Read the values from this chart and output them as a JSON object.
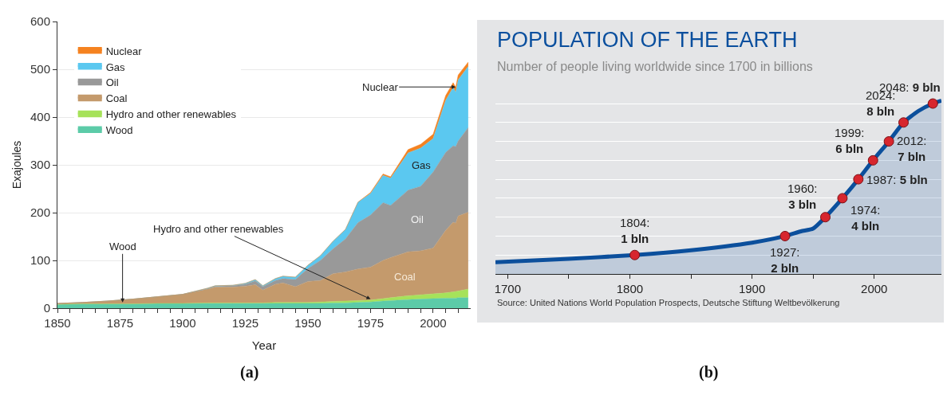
{
  "chart_data": [
    {
      "type": "area",
      "stacked": true,
      "xlabel": "Year",
      "ylabel": "Exajoules",
      "grid": "y",
      "legend": "top left",
      "x": [
        1850,
        1860,
        1870,
        1880,
        1890,
        1900,
        1910,
        1913,
        1920,
        1925,
        1929,
        1932,
        1937,
        1940,
        1945,
        1950,
        1955,
        1960,
        1965,
        1970,
        1975,
        1980,
        1983,
        1990,
        1995,
        2000,
        2005,
        2008,
        2009,
        2010,
        2014
      ],
      "series": [
        {
          "name": "Wood",
          "color": "#5ccba8",
          "values": [
            8,
            9,
            9,
            9,
            10,
            10,
            10,
            10,
            10,
            10,
            10,
            10,
            10,
            10,
            10,
            10,
            10,
            11,
            11,
            12,
            13,
            15,
            16,
            18,
            19,
            20,
            21,
            21,
            21,
            22,
            22
          ]
        },
        {
          "name": "Hydro and other renewables",
          "color": "#a6e25a",
          "values": [
            0,
            0,
            0,
            0,
            0,
            0,
            1,
            1,
            1,
            1,
            1,
            1,
            2,
            2,
            2,
            2,
            3,
            3,
            4,
            4,
            4,
            5,
            6,
            8,
            9,
            10,
            11,
            13,
            14,
            14,
            18
          ]
        },
        {
          "name": "Coal",
          "color": "#c49a6c",
          "values": [
            2,
            3,
            6,
            10,
            14,
            19,
            29,
            33,
            33,
            35,
            38,
            27,
            38,
            41,
            33,
            44,
            45,
            58,
            61,
            66,
            69,
            80,
            84,
            92,
            92,
            96,
            131,
            146,
            143,
            157,
            161
          ]
        },
        {
          "name": "Oil",
          "color": "#999999",
          "values": [
            0,
            0,
            0,
            0,
            0,
            0,
            1,
            2,
            3,
            4,
            8,
            7,
            8,
            9,
            15,
            27,
            42,
            52,
            69,
            97,
            109,
            121,
            109,
            129,
            135,
            159,
            163,
            160,
            160,
            157,
            177
          ]
        },
        {
          "name": "Gas",
          "color": "#5bc8f0",
          "values": [
            0,
            0,
            0,
            0,
            0,
            0,
            1,
            1,
            1,
            2,
            3,
            2,
            4,
            5,
            5,
            7,
            10,
            16,
            20,
            43,
            45,
            57,
            57,
            78,
            80,
            70,
            109,
            122,
            114,
            128,
            128
          ]
        },
        {
          "name": "Nuclear",
          "color": "#f58220",
          "values": [
            0,
            0,
            0,
            0,
            0,
            0,
            0,
            0,
            0,
            0,
            0,
            0,
            0,
            0,
            0,
            0,
            0,
            0,
            0,
            0,
            2,
            3,
            3,
            7,
            8,
            9,
            10,
            10,
            10,
            10,
            9
          ]
        }
      ],
      "xlim": [
        1850,
        2015
      ],
      "ylim": [
        0,
        600
      ],
      "xticks": [
        1850,
        {
          "value": 1855,
          "label": null
        },
        {
          "value": 1860,
          "label": null
        },
        {
          "value": 1865,
          "label": null
        },
        {
          "value": 1870,
          "label": null
        },
        1875,
        {
          "value": 1880,
          "label": null
        },
        {
          "value": 1885,
          "label": null
        },
        {
          "value": 1890,
          "label": null
        },
        {
          "value": 1895,
          "label": null
        },
        1900,
        {
          "value": 1905,
          "label": null
        },
        {
          "value": 1910,
          "label": null
        },
        {
          "value": 1915,
          "label": null
        },
        {
          "value": 1920,
          "label": null
        },
        1925,
        {
          "value": 1930,
          "label": null
        },
        {
          "value": 1935,
          "label": null
        },
        {
          "value": 1940,
          "label": null
        },
        {
          "value": 1945,
          "label": null
        },
        1950,
        {
          "value": 1955,
          "label": null
        },
        {
          "value": 1960,
          "label": null
        },
        {
          "value": 1965,
          "label": null
        },
        {
          "value": 1970,
          "label": null
        },
        1975,
        {
          "value": 1980,
          "label": null
        },
        {
          "value": 1985,
          "label": null
        },
        {
          "value": 1990,
          "label": null
        },
        {
          "value": 1995,
          "label": null
        },
        2000,
        {
          "value": 2005,
          "label": null
        },
        {
          "value": 2010,
          "label": null
        }
      ],
      "yticks": [
        0,
        100,
        200,
        300,
        400,
        500,
        600
      ],
      "annotations": [
        {
          "text": "Nuclear",
          "x": 2009,
          "y": 463
        },
        "Gas",
        "Oil",
        "Coal",
        {
          "text": "Hydro and other renewables",
          "x": 1975,
          "y": 19
        },
        {
          "text": "Wood",
          "x": 1876,
          "y": 12
        },
        "(a)"
      ]
    },
    {
      "type": "area",
      "title": "POPULATION OF THE EARTH",
      "subtitle": "Number of people living worldwide since 1700 in billions",
      "grid": "y",
      "tick_labels": "x",
      "series": [
        {
          "color": "#0b4f9c",
          "x": [
            1690,
            1750,
            1804,
            1850,
            1900,
            1927,
            1940,
            1950,
            1960,
            1974,
            1987,
            1999,
            2012,
            2024,
            2036,
            2048,
            2055
          ],
          "values": [
            0.62,
            0.8,
            1,
            1.25,
            1.65,
            2,
            2.25,
            2.4,
            3,
            4,
            5,
            6,
            7,
            8,
            8.6,
            9,
            9.15
          ]
        },
        {
          "type": "scatter",
          "marker": "circle",
          "color": "#d7262e",
          "x": [
            1804,
            1927,
            1960,
            1974,
            1987,
            1999,
            2012,
            2024,
            2048
          ],
          "values": [
            1,
            2,
            3,
            4,
            5,
            6,
            7,
            8,
            9
          ],
          "value_labels": [
            "1804: 1 bln",
            "1927: 2 bln",
            "1960: 3 bln",
            "1974: 4 bln",
            "1987: 5 bln",
            "1999: 6 bln",
            "2012: 7 bln",
            "2024: 8 bln",
            "2048: 9 bln"
          ]
        }
      ],
      "xlim": [
        1690,
        2055
      ],
      "xticks": [
        1700,
        {
          "value": 1750,
          "label": null
        },
        1800,
        {
          "value": 1850,
          "label": null
        },
        1900,
        {
          "value": 1950,
          "label": null
        },
        2000
      ],
      "yticks": [
        {
          "value": 1,
          "label": null
        },
        {
          "value": 2,
          "label": null
        },
        {
          "value": 3,
          "label": null
        },
        {
          "value": 4,
          "label": null
        },
        {
          "value": 5,
          "label": null
        },
        {
          "value": 6,
          "label": null
        },
        {
          "value": 7,
          "label": null
        },
        {
          "value": 8,
          "label": null
        },
        {
          "value": 9,
          "label": null
        }
      ],
      "annotations": [
        "Source: United Nations World Population Prospects, Deutsche Stiftung Weltbevölkerung",
        "(b)"
      ]
    }
  ]
}
